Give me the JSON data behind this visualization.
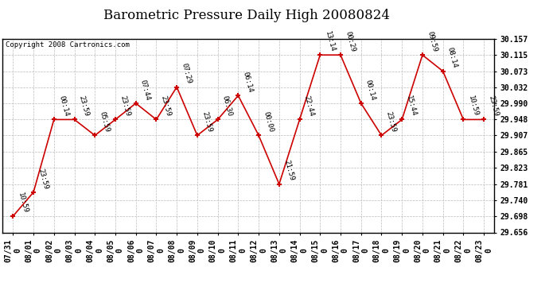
{
  "title": "Barometric Pressure Daily High 20080824",
  "copyright": "Copyright 2008 Cartronics.com",
  "x_tick_labels": [
    "07/31\n0",
    "08/01\n0",
    "08/02\n0",
    "08/03\n0",
    "08/04\n0",
    "08/05\n0",
    "08/06\n0",
    "08/07\n0",
    "08/08\n0",
    "08/09\n0",
    "08/10\n0",
    "08/11\n0",
    "08/12\n0",
    "08/13\n0",
    "08/14\n0",
    "08/15\n0",
    "08/16\n0",
    "08/17\n0",
    "08/18\n0",
    "08/19\n0",
    "08/20\n0",
    "08/21\n0",
    "08/22\n0",
    "08/23\n0"
  ],
  "y_values": [
    29.698,
    29.76,
    29.948,
    29.948,
    29.907,
    29.948,
    29.99,
    29.948,
    30.032,
    29.907,
    29.948,
    30.01,
    29.907,
    29.781,
    29.948,
    30.115,
    30.115,
    29.99,
    29.907,
    29.948,
    30.115,
    30.073,
    29.948,
    29.948
  ],
  "time_labels": [
    "10:59",
    "23:59",
    "00:14",
    "23:59",
    "05:59",
    "23:59",
    "07:44",
    "23:59",
    "07:29",
    "23:59",
    "06:30",
    "06:14",
    "00:00",
    "21:59",
    "22:44",
    "13:14",
    "00:29",
    "00:14",
    "23:59",
    "15:44",
    "09:59",
    "08:14",
    "10:59",
    "23:59"
  ],
  "ylim_min": 29.656,
  "ylim_max": 30.157,
  "yticks": [
    29.656,
    29.698,
    29.74,
    29.781,
    29.823,
    29.865,
    29.907,
    29.948,
    29.99,
    30.032,
    30.073,
    30.115,
    30.157
  ],
  "bg_color": "#ffffff",
  "grid_color": "#bbbbbb",
  "line_color": "#cc0000",
  "marker_color": "#cc0000",
  "title_fontsize": 12,
  "tick_label_fontsize": 7,
  "annotation_fontsize": 6.5
}
